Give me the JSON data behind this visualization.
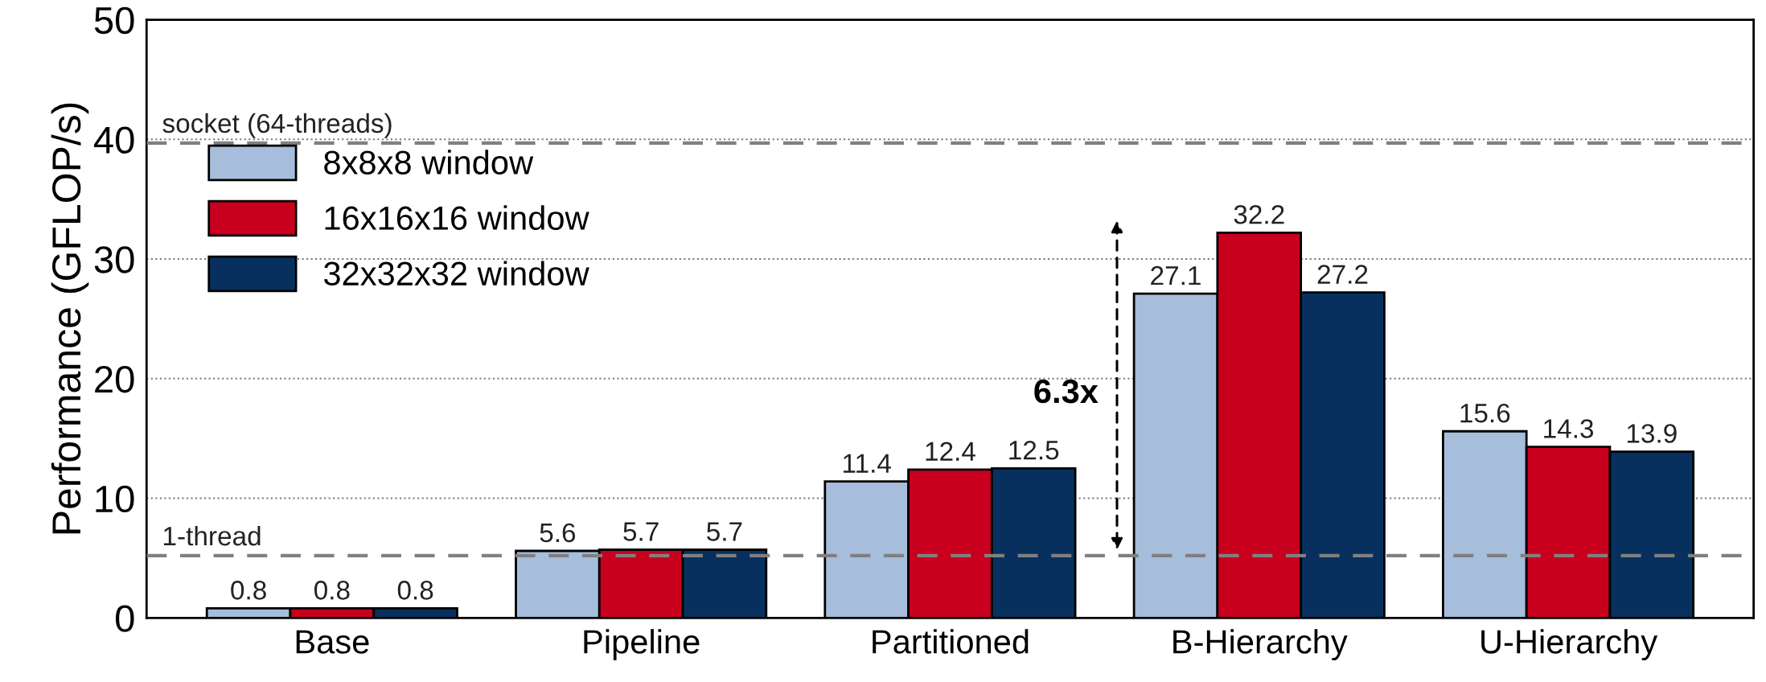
{
  "chart_data": {
    "type": "bar",
    "ylabel": "Performance (GFLOP/s)",
    "categories": [
      "Base",
      "Pipeline",
      "Partitioned",
      "B-Hierarchy",
      "U-Hierarchy"
    ],
    "series": [
      {
        "name": "8x8x8 window",
        "color": "#a6bddb",
        "values": [
          0.8,
          5.6,
          11.4,
          27.1,
          15.6
        ]
      },
      {
        "name": "16x16x16 window",
        "color": "#c8001e",
        "values": [
          0.8,
          5.7,
          12.4,
          32.2,
          14.3
        ]
      },
      {
        "name": "32x32x32 window",
        "color": "#08305e",
        "values": [
          0.8,
          5.7,
          12.5,
          27.2,
          13.9
        ]
      }
    ],
    "ylim": [
      0,
      50
    ],
    "yticks": [
      0,
      10,
      20,
      30,
      40,
      50
    ],
    "grid": "y",
    "legend": "top left",
    "data_labels": true,
    "ref_lines": [
      {
        "axis": "y",
        "value": 39.7,
        "label": "socket (64-threads)",
        "color": "#808080",
        "line_style": "dashed"
      },
      {
        "axis": "y",
        "value": 5.2,
        "label": "1-thread",
        "color": "#808080",
        "line_style": "dashed"
      }
    ],
    "annotations": [
      "6.3x"
    ]
  }
}
